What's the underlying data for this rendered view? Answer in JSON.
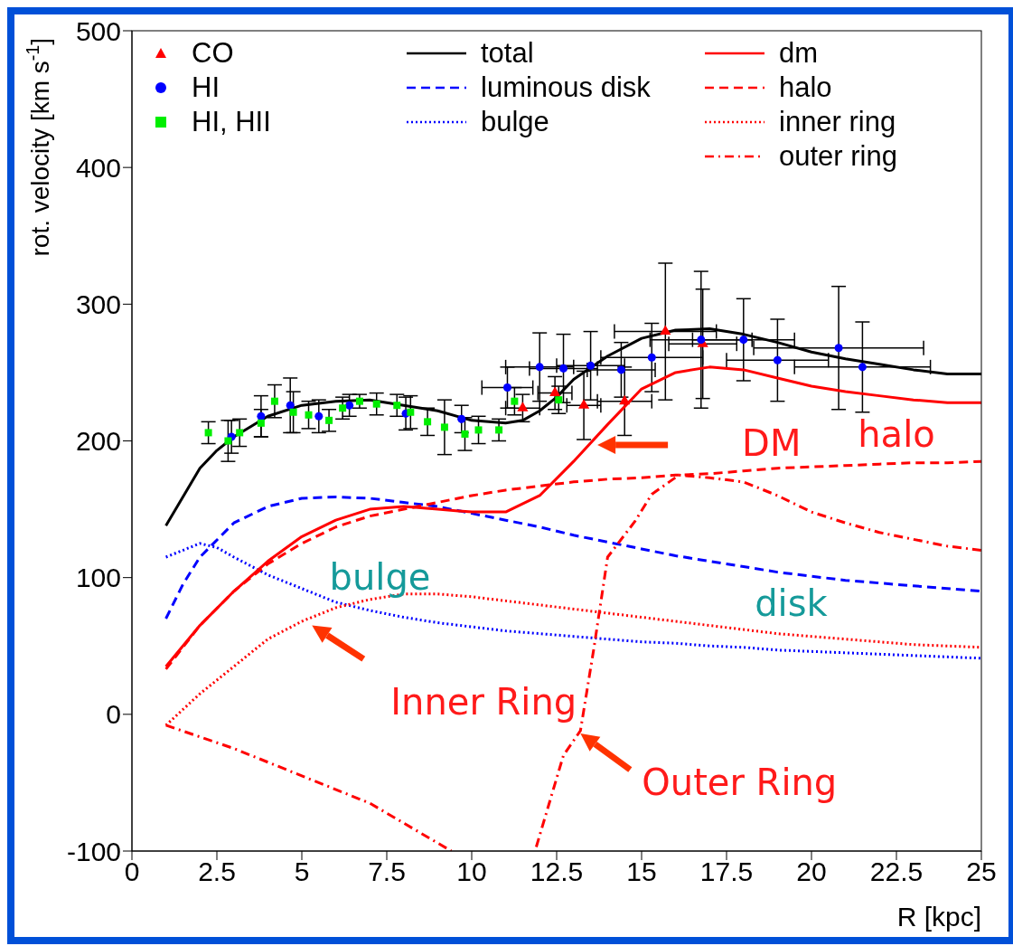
{
  "chart_data": {
    "type": "line",
    "xlabel": "R [kpc]",
    "ylabel": "rot. velocity [km s$^{-1}$]",
    "xlim": [
      0,
      25
    ],
    "xticks": [
      0,
      2.5,
      5,
      7.5,
      10,
      12.5,
      15,
      17.5,
      20,
      22.5,
      25
    ],
    "ylim": [
      -100,
      500
    ],
    "yticks": [
      -100,
      0,
      100,
      200,
      300,
      400,
      500
    ],
    "legend": "top",
    "series": [
      {
        "name": "CO",
        "type": "scatter",
        "marker": "triangle",
        "color": "#ff0000",
        "x": [
          11.5,
          12.45,
          13.3,
          14.5,
          15.7,
          16.8
        ],
        "values": [
          224,
          235,
          226,
          229,
          280,
          271
        ],
        "errors": [
          10,
          12,
          25,
          25,
          50,
          40
        ],
        "xerrors": [
          0.5,
          0.5,
          0.5,
          0.8,
          1.5,
          1
        ]
      },
      {
        "name": "HI",
        "type": "scatter",
        "marker": "circle",
        "color": "#0000ff",
        "x": [
          2.93,
          3.8,
          4.66,
          5.5,
          6.4,
          8.06,
          9.7,
          11.05,
          12.0,
          12.7,
          13.5,
          14.4,
          15.3,
          16.75,
          18.0,
          19.0,
          20.8,
          21.5
        ],
        "values": [
          203,
          218,
          226,
          218,
          226,
          220,
          216,
          239,
          254,
          253,
          255,
          252,
          261,
          274,
          274,
          259,
          268,
          254
        ],
        "errors": [
          12,
          15,
          20,
          12,
          8,
          12,
          10,
          15,
          25,
          25,
          25,
          20,
          25,
          50,
          30,
          30,
          45,
          33
        ],
        "xerrors": [
          null,
          null,
          null,
          null,
          null,
          null,
          null,
          0.75,
          1,
          1,
          1,
          1,
          1.5,
          1.5,
          1.5,
          1.5,
          2.5,
          2
        ]
      },
      {
        "name": "HI, HII",
        "type": "scatter",
        "marker": "square",
        "color": "#00ee00",
        "x": [
          2.25,
          2.83,
          3.17,
          3.8,
          4.2,
          4.75,
          5.2,
          5.8,
          6.2,
          6.7,
          7.2,
          7.8,
          8.2,
          8.7,
          9.2,
          9.8,
          10.2,
          10.8,
          11.26,
          12.56
        ],
        "values": [
          206,
          200,
          206,
          213,
          229,
          221,
          219,
          215,
          224,
          229,
          227,
          226,
          221,
          214,
          210,
          205,
          208,
          208,
          229,
          230
        ],
        "errors": [
          8,
          15,
          10,
          10,
          12,
          15,
          10,
          8,
          8,
          5,
          8,
          8,
          12,
          10,
          20,
          12,
          10,
          8,
          10,
          10
        ]
      },
      {
        "name": "total",
        "line_style": "solid",
        "color": "#000000",
        "x": [
          1,
          2,
          2.5,
          3,
          4,
          5,
          6,
          7,
          8,
          9,
          10,
          11,
          11.5,
          12,
          12.5,
          13,
          14,
          15,
          16,
          17,
          18,
          19,
          20,
          21,
          22,
          23,
          24,
          25
        ],
        "values": [
          138,
          180,
          193,
          203,
          218,
          226,
          229,
          230,
          226,
          222,
          215,
          213,
          215,
          222,
          232,
          245,
          262,
          275,
          281,
          282,
          278,
          272,
          265,
          260,
          256,
          252,
          249,
          249
        ]
      },
      {
        "name": "luminous disk",
        "line_style": "dashed",
        "color": "#0000ff",
        "x": [
          1,
          1.5,
          2,
          3,
          4,
          5,
          6,
          7,
          8,
          9,
          10,
          11,
          12,
          13,
          14,
          15,
          16,
          17,
          18,
          19,
          20,
          21,
          22,
          23,
          24,
          25
        ],
        "values": [
          70,
          95,
          115,
          140,
          152,
          158,
          159,
          158,
          155,
          152,
          147,
          142,
          137,
          131,
          126,
          121,
          116,
          112,
          108,
          104,
          101,
          98,
          96,
          94,
          92,
          90
        ]
      },
      {
        "name": "bulge",
        "line_style": "dotted",
        "color": "#0000ff",
        "x": [
          1,
          2,
          2.5,
          3,
          4,
          5,
          6,
          7,
          8,
          9,
          10,
          11,
          12,
          13,
          14,
          15,
          16,
          17,
          18,
          19,
          20,
          21,
          22,
          23,
          24,
          25
        ],
        "values": [
          115,
          125,
          122,
          115,
          102,
          92,
          82,
          76,
          71,
          67,
          64,
          61,
          59,
          57,
          55,
          53,
          52,
          50,
          49,
          47,
          46,
          45,
          44,
          43,
          42,
          41
        ]
      },
      {
        "name": "dm",
        "line_style": "solid",
        "color": "#ff0000",
        "x": [
          1,
          2,
          3,
          4,
          5,
          6,
          7,
          8,
          9,
          10,
          11,
          12,
          13,
          14,
          15,
          16,
          17,
          18,
          19,
          20,
          21,
          22,
          23,
          24,
          25
        ],
        "values": [
          35,
          65,
          90,
          112,
          130,
          142,
          150,
          152,
          150,
          148,
          148,
          160,
          185,
          212,
          238,
          250,
          254,
          252,
          246,
          240,
          236,
          233,
          230,
          228,
          228
        ]
      },
      {
        "name": "halo",
        "line_style": "dashed",
        "color": "#ff0000",
        "x": [
          1,
          2,
          3,
          4,
          5,
          6,
          7,
          8,
          9,
          10,
          11,
          12,
          13,
          14,
          15,
          16,
          17,
          18,
          19,
          20,
          21,
          22,
          23,
          24,
          25
        ],
        "values": [
          33,
          65,
          90,
          110,
          125,
          137,
          145,
          150,
          155,
          160,
          164,
          167,
          170,
          172,
          173,
          175,
          176,
          178,
          180,
          181,
          182,
          183,
          184,
          184,
          185
        ]
      },
      {
        "name": "inner ring",
        "line_style": "dotted",
        "color": "#ff0000",
        "x": [
          1,
          2,
          3,
          4,
          5,
          6,
          7,
          8,
          9,
          10,
          11,
          12,
          13,
          14,
          15,
          16,
          17,
          18,
          19,
          20,
          21,
          22,
          23,
          24,
          25
        ],
        "values": [
          -8,
          15,
          35,
          55,
          68,
          78,
          84,
          88,
          88,
          86,
          83,
          80,
          77,
          74,
          71,
          68,
          65,
          62,
          59,
          57,
          55,
          53,
          51,
          50,
          49
        ]
      },
      {
        "name": "outer ring",
        "line_style": "dashdot",
        "color": "#ff0000",
        "x": [
          1,
          3,
          5,
          7,
          9.4,
          10,
          11,
          11.9,
          12.7,
          13.2,
          13.6,
          14.0,
          14.8,
          15.3,
          16.1,
          17,
          18,
          19,
          20,
          21,
          22,
          23,
          24,
          25
        ],
        "values": [
          -8,
          -25,
          -45,
          -65,
          -100,
          null,
          null,
          -97,
          -30,
          -12,
          49,
          115,
          141,
          161,
          175,
          173,
          170,
          160,
          148,
          140,
          133,
          128,
          123,
          120
        ]
      }
    ],
    "annotations": [
      "DM",
      "halo",
      "bulge",
      "disk",
      "Inner Ring",
      "Outer Ring"
    ]
  }
}
